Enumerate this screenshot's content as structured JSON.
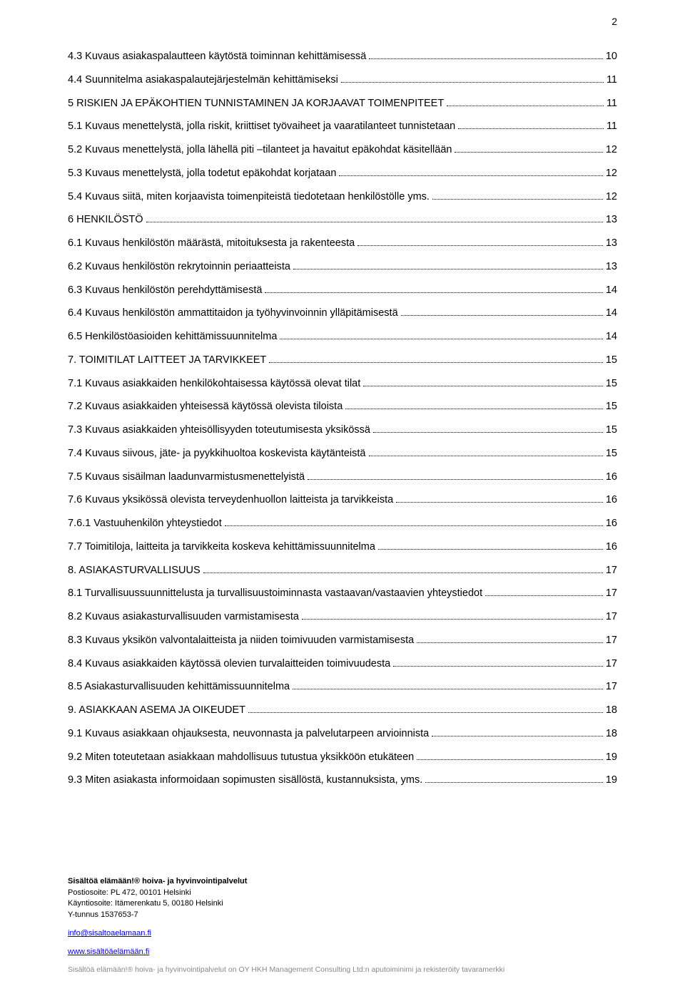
{
  "page_number": "2",
  "toc": [
    {
      "title": "4.3 Kuvaus asiakaspalautteen käytöstä toiminnan kehittämisessä",
      "page": "10"
    },
    {
      "title": "4.4 Suunnitelma asiakaspalautejärjestelmän kehittämiseksi",
      "page": "11"
    },
    {
      "title": "5 RISKIEN JA EPÄKOHTIEN TUNNISTAMINEN JA KORJAAVAT TOIMENPITEET",
      "page": "11"
    },
    {
      "title": "5.1 Kuvaus menettelystä, jolla riskit, kriittiset työvaiheet ja vaaratilanteet tunnistetaan",
      "page": "11"
    },
    {
      "title": "5.2 Kuvaus menettelystä, jolla lähellä piti –tilanteet ja havaitut epäkohdat käsitellään",
      "page": "12"
    },
    {
      "title": "5.3 Kuvaus menettelystä, jolla todetut epäkohdat korjataan",
      "page": "12"
    },
    {
      "title": "5.4 Kuvaus siitä, miten korjaavista toimenpiteistä tiedotetaan henkilöstölle yms.",
      "page": "12"
    },
    {
      "title": "6 HENKILÖSTÖ",
      "page": "13"
    },
    {
      "title": "6.1 Kuvaus henkilöstön määrästä, mitoituksesta ja rakenteesta",
      "page": "13"
    },
    {
      "title": "6.2 Kuvaus henkilöstön rekrytoinnin periaatteista",
      "page": "13"
    },
    {
      "title": "6.3 Kuvaus henkilöstön perehdyttämisestä",
      "page": "14"
    },
    {
      "title": "6.4 Kuvaus henkilöstön ammattitaidon ja työhyvinvoinnin ylläpitämisestä",
      "page": "14"
    },
    {
      "title": "6.5 Henkilöstöasioiden kehittämissuunnitelma",
      "page": "14"
    },
    {
      "title": "7. TOIMITILAT LAITTEET JA TARVIKKEET",
      "page": "15"
    },
    {
      "title": "7.1 Kuvaus asiakkaiden henkilökohtaisessa käytössä olevat tilat",
      "page": "15"
    },
    {
      "title": "7.2 Kuvaus asiakkaiden yhteisessä käytössä olevista tiloista",
      "page": "15"
    },
    {
      "title": "7.3 Kuvaus asiakkaiden yhteisöllisyyden toteutumisesta yksikössä",
      "page": "15"
    },
    {
      "title": "7.4 Kuvaus siivous, jäte- ja pyykkihuoltoa koskevista käytänteistä",
      "page": "15"
    },
    {
      "title": "7.5 Kuvaus sisäilman laadunvarmistusmenettelyistä",
      "page": "16"
    },
    {
      "title": "7.6 Kuvaus yksikössä olevista terveydenhuollon laitteista ja tarvikkeista",
      "page": "16"
    },
    {
      "title": "7.6.1 Vastuuhenkilön yhteystiedot",
      "page": "16"
    },
    {
      "title": "7.7 Toimitiloja, laitteita ja tarvikkeita koskeva kehittämissuunnitelma",
      "page": "16"
    },
    {
      "title": "8. ASIAKASTURVALLISUUS",
      "page": "17"
    },
    {
      "title": "8.1 Turvallisuussuunnittelusta ja turvallisuustoiminnasta vastaavan/vastaavien yhteystiedot",
      "page": "17"
    },
    {
      "title": "8.2 Kuvaus asiakasturvallisuuden varmistamisesta",
      "page": "17"
    },
    {
      "title": "8.3 Kuvaus yksikön valvontalaitteista ja niiden toimivuuden varmistamisesta",
      "page": "17"
    },
    {
      "title": "8.4 Kuvaus asiakkaiden käytössä olevien turvalaitteiden toimivuudesta",
      "page": "17"
    },
    {
      "title": "8.5 Asiakasturvallisuuden kehittämissuunnitelma",
      "page": "17"
    },
    {
      "title": "9. ASIAKKAAN ASEMA JA OIKEUDET",
      "page": "18"
    },
    {
      "title": "9.1 Kuvaus asiakkaan ohjauksesta, neuvonnasta ja palvelutarpeen arvioinnista",
      "page": "18"
    },
    {
      "title": "9.2 Miten toteutetaan asiakkaan mahdollisuus tutustua yksikköön etukäteen",
      "page": "19"
    },
    {
      "title": "9.3 Miten asiakasta informoidaan sopimusten sisällöstä, kustannuksista, yms.",
      "page": "19"
    }
  ],
  "footer": {
    "company_bold": "Sisältöä elämään!® hoiva- ja hyvinvointipalvelut",
    "post_address": "Postiosoite: PL 472, 00101 Helsinki",
    "visit_address": "Käyntiosoite: Itämerenkatu 5, 00180 Helsinki",
    "business_id": "Y-tunnus 1537653-7",
    "email": "info@sisaltoaelamaan.fi",
    "website": "www.sisältöäelämään.fi",
    "disclaimer": "Sisältöä elämään!® hoiva- ja hyvinvointipalvelut on OY HKH Management Consulting Ltd:n aputoiminimi ja rekisteröity tavaramerkki"
  }
}
